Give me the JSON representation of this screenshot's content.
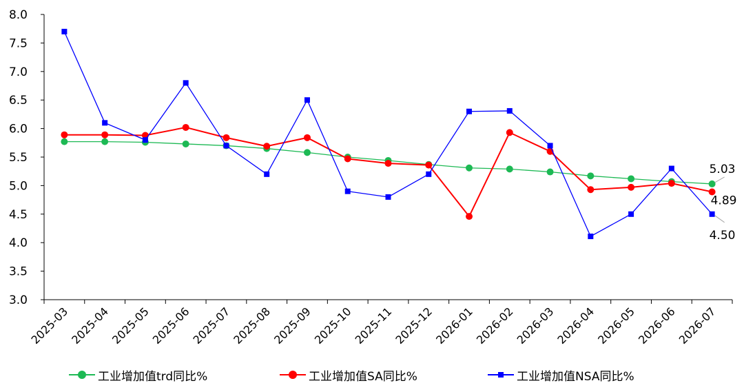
{
  "chart_data": {
    "type": "line",
    "categories": [
      "2025-03",
      "2025-04",
      "2025-05",
      "2025-06",
      "2025-07",
      "2025-08",
      "2025-09",
      "2025-10",
      "2025-11",
      "2025-12",
      "2026-01",
      "2026-02",
      "2026-03",
      "2026-04",
      "2026-05",
      "2026-06",
      "2026-07"
    ],
    "series": [
      {
        "name": "工业增加值trd同比%",
        "color": "#1DB954",
        "marker": "circle",
        "values": [
          5.77,
          5.77,
          5.76,
          5.73,
          5.7,
          5.65,
          5.58,
          5.5,
          5.44,
          5.37,
          5.31,
          5.29,
          5.24,
          5.17,
          5.12,
          5.07,
          5.03
        ],
        "end_label": "5.03"
      },
      {
        "name": "工业增加值SA同比%",
        "color": "#FF0000",
        "marker": "circle",
        "values": [
          5.89,
          5.89,
          5.88,
          6.02,
          5.84,
          5.69,
          5.84,
          5.47,
          5.39,
          5.36,
          4.46,
          5.93,
          5.6,
          4.93,
          4.97,
          5.04,
          4.89
        ],
        "end_label": "4.89"
      },
      {
        "name": "工业增加值NSA同比%",
        "color": "#0000FF",
        "marker": "square",
        "values": [
          7.7,
          6.1,
          5.8,
          6.8,
          5.7,
          5.2,
          6.5,
          4.9,
          4.8,
          5.2,
          6.3,
          6.31,
          5.7,
          4.11,
          4.5,
          5.3,
          4.5
        ],
        "end_label": "4.50"
      }
    ],
    "yticks": [
      "3.0",
      "3.5",
      "4.0",
      "4.5",
      "5.0",
      "5.5",
      "6.0",
      "6.5",
      "7.0",
      "7.5",
      "8.0"
    ],
    "ylim": [
      3.0,
      8.0
    ],
    "title": "",
    "xlabel": "",
    "ylabel": "",
    "grid": false,
    "legend_position": "bottom"
  }
}
